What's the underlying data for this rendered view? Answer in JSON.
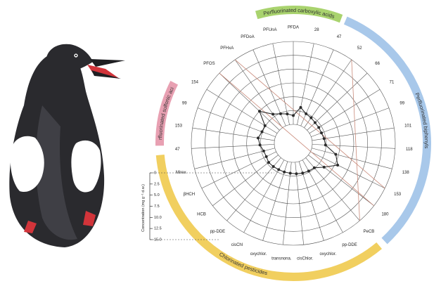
{
  "colors": {
    "perfluorinated_carboxylic": "#a9d36e",
    "perfluorinated_sulfonic": "#e8a0b2",
    "perfluorinated_biphenyls": "#a8c8ea",
    "chlorinated_pesticides": "#f1cf5f",
    "line": "#2b2b2b",
    "reference_line": "#c98a7a",
    "grid": "#555555"
  },
  "illustration": {
    "subject": "black guillemot",
    "icon": "bird-illustration"
  },
  "chart_data": {
    "type": "radar",
    "axis_label": "Concentration (mg g⁻¹ d.w.)",
    "axis_ticks": [
      "0",
      "2.5",
      "5.0",
      "7.5",
      "10.0",
      "12.5",
      "15.0"
    ],
    "rlim": [
      0,
      15
    ],
    "grid": true,
    "groups": [
      {
        "name": "Perfluorinated carboxylic acids",
        "color_key": "perfluorinated_carboxylic",
        "start_angle": 344,
        "end_angle": 21
      },
      {
        "name": "Perfluorinated biphenyls",
        "color_key": "perfluorinated_biphenyls",
        "start_angle": 23,
        "end_angle": 137
      },
      {
        "name": "Chlorinated pesticides",
        "color_key": "chlorinated_pesticides",
        "start_angle": 140,
        "end_angle": 265
      },
      {
        "name": "Perfluorinated sulfonic acids",
        "color_key": "perfluorinated_sulfonic",
        "start_angle": 269,
        "end_angle": 297
      }
    ],
    "categories": [
      "PFDA",
      "28",
      "47",
      "52",
      "66",
      "71",
      "99",
      "101",
      "118",
      "138",
      "153",
      "180",
      "PeCB",
      "pp-DDE",
      "oxychlor.",
      "cisChlor.",
      "transnona.",
      "oxychlor.",
      "cisChl",
      "pp-DDE",
      "HCB",
      "βHCH",
      "Mirex",
      "47",
      "153",
      "99",
      "154",
      "PFOS",
      "PFHxA",
      "PFDoA",
      "PFUnA"
    ],
    "series": [
      {
        "values": [
          1.6,
          3.2,
          2.4,
          2.2,
          2.0,
          2.0,
          2.0,
          2.2,
          2.4,
          4.5,
          5.5,
          3.6,
          2.4,
          2.3,
          2.2,
          2.1,
          2.0,
          2.0,
          2.0,
          2.1,
          2.2,
          2.0,
          2.1,
          2.6,
          3.0,
          2.6,
          2.6,
          5.0,
          3.0,
          2.4,
          2.0
        ]
      }
    ],
    "reference_lines": [
      {
        "from_category_index": 27,
        "to_category_index": 11,
        "style": "thin"
      },
      {
        "from_category_index": 28,
        "to_category_index": 10,
        "style": "thin"
      },
      {
        "from_category_index": 12,
        "to_category_index": 3,
        "style": "thin"
      }
    ]
  }
}
